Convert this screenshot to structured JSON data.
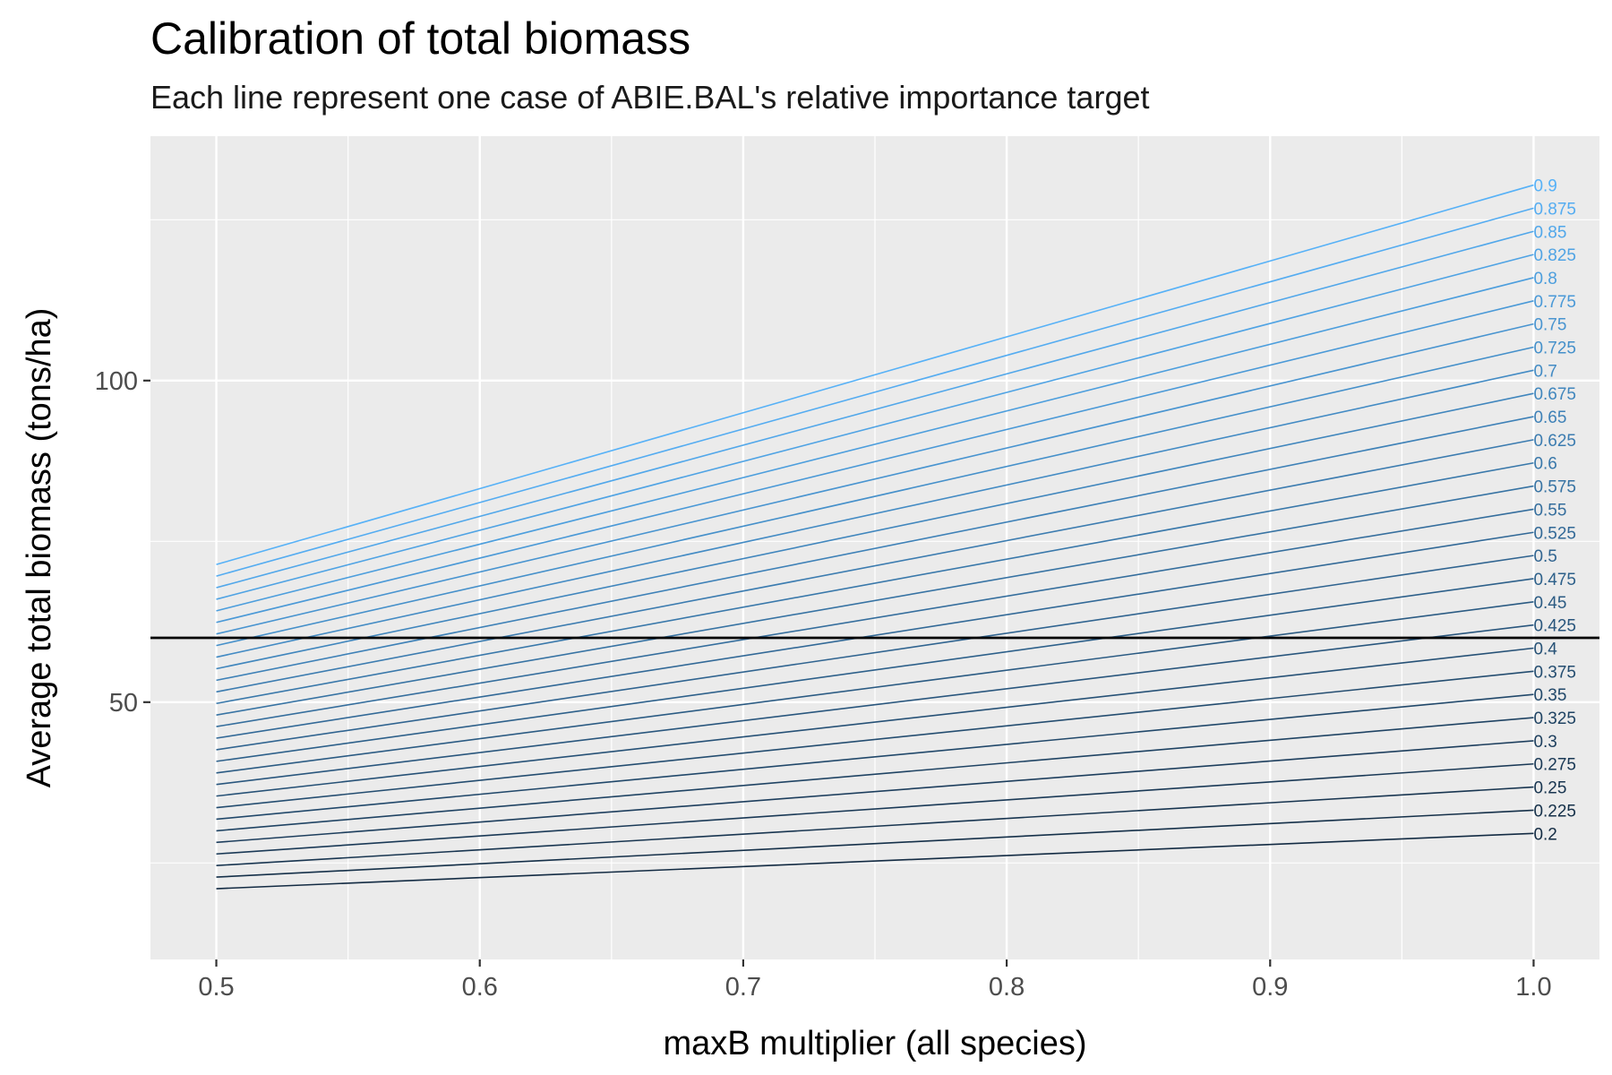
{
  "chart_data": {
    "type": "line",
    "title": "Calibration of total biomass",
    "subtitle": "Each line represent one case of ABIE.BAL's relative importance target",
    "xlabel": "maxB multiplier (all species)",
    "ylabel": "Average total biomass (tons/ha)",
    "x": [
      0.5,
      1.0
    ],
    "xlim": [
      0.475,
      1.025
    ],
    "ylim": [
      10.0,
      138.0
    ],
    "x_ticks": [
      {
        "value": 0.5,
        "label": "0.5"
      },
      {
        "value": 0.6,
        "label": "0.6"
      },
      {
        "value": 0.7,
        "label": "0.7"
      },
      {
        "value": 0.8,
        "label": "0.8"
      },
      {
        "value": 0.9,
        "label": "0.9"
      },
      {
        "value": 1.0,
        "label": "1.0"
      }
    ],
    "y_ticks": [
      {
        "value": 50,
        "label": "50"
      },
      {
        "value": 100,
        "label": "100"
      }
    ],
    "grid": true,
    "reference_line": {
      "y": 60
    },
    "color_low": "#132B43",
    "color_high": "#56B1F7",
    "series": [
      {
        "name": "0.2",
        "values": [
          21.0,
          29.6
        ]
      },
      {
        "name": "0.225",
        "values": [
          22.8,
          33.2
        ]
      },
      {
        "name": "0.25",
        "values": [
          24.6,
          36.8
        ]
      },
      {
        "name": "0.275",
        "values": [
          26.4,
          40.4
        ]
      },
      {
        "name": "0.3",
        "values": [
          28.2,
          44.0
        ]
      },
      {
        "name": "0.325",
        "values": [
          30.0,
          47.6
        ]
      },
      {
        "name": "0.35",
        "values": [
          31.8,
          51.2
        ]
      },
      {
        "name": "0.375",
        "values": [
          33.6,
          54.8
        ]
      },
      {
        "name": "0.4",
        "values": [
          35.4,
          58.4
        ]
      },
      {
        "name": "0.425",
        "values": [
          37.2,
          62.0
        ]
      },
      {
        "name": "0.45",
        "values": [
          39.0,
          65.6
        ]
      },
      {
        "name": "0.475",
        "values": [
          40.8,
          69.2
        ]
      },
      {
        "name": "0.5",
        "values": [
          42.6,
          72.8
        ]
      },
      {
        "name": "0.525",
        "values": [
          44.4,
          76.4
        ]
      },
      {
        "name": "0.55",
        "values": [
          46.2,
          80.0
        ]
      },
      {
        "name": "0.575",
        "values": [
          48.0,
          83.6
        ]
      },
      {
        "name": "0.6",
        "values": [
          49.8,
          87.2
        ]
      },
      {
        "name": "0.625",
        "values": [
          51.6,
          90.8
        ]
      },
      {
        "name": "0.65",
        "values": [
          53.4,
          94.4
        ]
      },
      {
        "name": "0.675",
        "values": [
          55.2,
          98.0
        ]
      },
      {
        "name": "0.7",
        "values": [
          57.0,
          101.6
        ]
      },
      {
        "name": "0.725",
        "values": [
          58.8,
          105.2
        ]
      },
      {
        "name": "0.75",
        "values": [
          60.6,
          108.8
        ]
      },
      {
        "name": "0.775",
        "values": [
          62.4,
          112.4
        ]
      },
      {
        "name": "0.8",
        "values": [
          64.2,
          116.0
        ]
      },
      {
        "name": "0.825",
        "values": [
          66.0,
          119.6
        ]
      },
      {
        "name": "0.85",
        "values": [
          67.8,
          123.2
        ]
      },
      {
        "name": "0.875",
        "values": [
          69.6,
          126.8
        ]
      },
      {
        "name": "0.9",
        "values": [
          71.4,
          130.4
        ]
      }
    ]
  }
}
